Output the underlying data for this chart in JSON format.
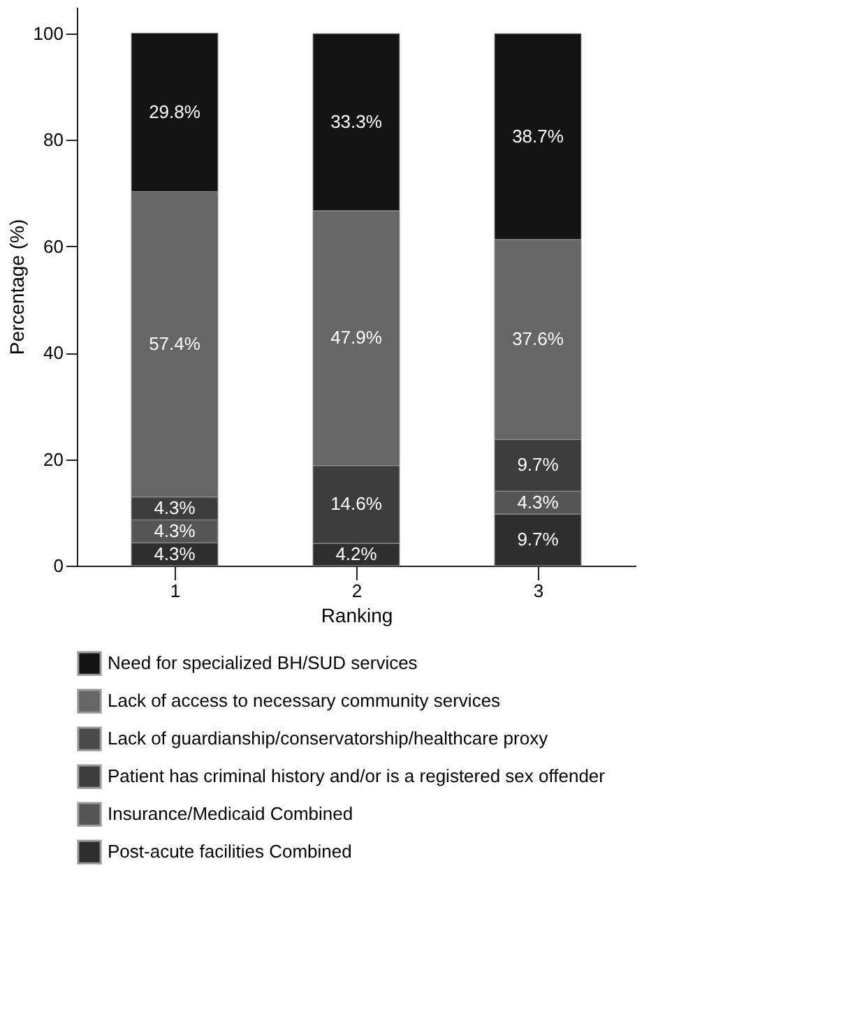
{
  "chart_data": {
    "type": "bar",
    "stacked": true,
    "xlabel": "Ranking",
    "ylabel": "Percentage (%)",
    "categories": [
      "1",
      "2",
      "3"
    ],
    "ylim": [
      0,
      105
    ],
    "yticks": [
      0,
      20,
      40,
      60,
      80,
      100
    ],
    "grid": false,
    "legend": "bottom",
    "series": [
      {
        "name": "Post-acute facilities Combined",
        "color": "#2e2e2e",
        "values": [
          4.3,
          4.2,
          9.7
        ],
        "value_labels": [
          "4.3%",
          "4.2%",
          "9.7%"
        ]
      },
      {
        "name": "Insurance/Medicaid Combined",
        "color": "#555555",
        "values": [
          4.3,
          null,
          4.3
        ],
        "value_labels": [
          "4.3%",
          null,
          "4.3%"
        ]
      },
      {
        "name": "Patient has criminal history and/or is a registered sex offender",
        "color": "#3d3d3d",
        "values": [
          4.3,
          14.6,
          9.7
        ],
        "value_labels": [
          "4.3%",
          "14.6%",
          "9.7%"
        ]
      },
      {
        "name": "Lack of guardianship/conservatorship/healthcare proxy",
        "color": "#4a4a4a",
        "values": [
          null,
          null,
          null
        ],
        "value_labels": [
          null,
          null,
          null
        ]
      },
      {
        "name": "Lack of access to necessary community services",
        "color": "#666666",
        "values": [
          57.4,
          47.9,
          37.6
        ],
        "value_labels": [
          "57.4%",
          "47.9%",
          "37.6%"
        ]
      },
      {
        "name": "Need for specialized BH/SUD services",
        "color": "#141414",
        "values": [
          29.8,
          33.3,
          38.7
        ],
        "value_labels": [
          "29.8%",
          "33.3%",
          "38.7%"
        ]
      }
    ]
  }
}
